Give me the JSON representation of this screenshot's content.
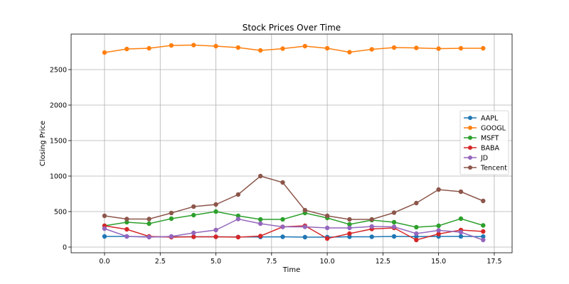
{
  "chart_data": {
    "type": "line",
    "title": "Stock Prices Over Time",
    "xlabel": "Time",
    "ylabel": "Closing Price",
    "xlim": [
      -1.5,
      18.3
    ],
    "ylim": [
      -80,
      3000
    ],
    "x_ticks": [
      0.0,
      2.5,
      5.0,
      7.5,
      10.0,
      12.5,
      15.0,
      17.5
    ],
    "x_tick_labels": [
      "0.0",
      "2.5",
      "5.0",
      "7.5",
      "10.0",
      "12.5",
      "15.0",
      "17.5"
    ],
    "y_ticks": [
      0,
      500,
      1000,
      1500,
      2000,
      2500
    ],
    "y_tick_labels": [
      "0",
      "500",
      "1000",
      "1500",
      "2000",
      "2500"
    ],
    "grid": true,
    "legend_position": "center-right",
    "x": [
      0,
      1,
      2,
      3,
      4,
      5,
      6,
      7,
      8,
      9,
      10,
      11,
      12,
      13,
      14,
      15,
      16,
      17
    ],
    "series": [
      {
        "name": "AAPL",
        "color": "#1f77b4",
        "values": [
          150,
          150,
          145,
          145,
          145,
          145,
          142,
          143,
          145,
          140,
          140,
          145,
          145,
          150,
          148,
          150,
          150,
          148
        ]
      },
      {
        "name": "GOOGL",
        "color": "#ff7f0e",
        "values": [
          2740,
          2790,
          2800,
          2840,
          2845,
          2830,
          2810,
          2770,
          2795,
          2830,
          2800,
          2745,
          2785,
          2810,
          2805,
          2795,
          2800,
          2800
        ]
      },
      {
        "name": "MSFT",
        "color": "#2ca02c",
        "values": [
          300,
          350,
          330,
          400,
          450,
          500,
          440,
          390,
          390,
          480,
          410,
          320,
          380,
          350,
          280,
          300,
          400,
          305
        ]
      },
      {
        "name": "BABA",
        "color": "#d62728",
        "values": [
          300,
          250,
          150,
          140,
          145,
          145,
          140,
          155,
          285,
          300,
          120,
          190,
          255,
          270,
          100,
          185,
          240,
          220
        ]
      },
      {
        "name": "JD",
        "color": "#9467bd",
        "values": [
          260,
          150,
          140,
          150,
          200,
          240,
          395,
          330,
          285,
          285,
          270,
          270,
          290,
          285,
          190,
          235,
          210,
          100
        ]
      },
      {
        "name": "Tencent",
        "color": "#8c564b",
        "values": [
          440,
          395,
          395,
          480,
          570,
          600,
          740,
          1000,
          910,
          520,
          440,
          390,
          390,
          485,
          620,
          810,
          780,
          650
        ]
      }
    ]
  }
}
